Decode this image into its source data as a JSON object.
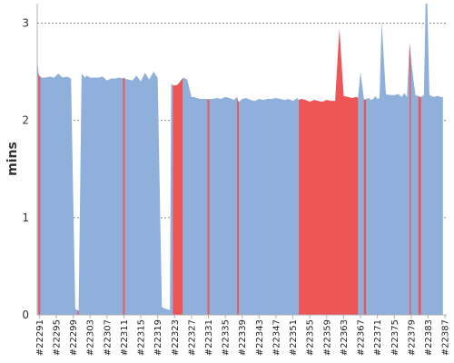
{
  "chart_data": {
    "type": "area",
    "ylabel": "mins",
    "ylim": [
      0,
      3.2
    ],
    "yticks": [
      0,
      1,
      2,
      3
    ],
    "grid": "horizontal dashed",
    "colors": {
      "pass": "#8eb0db",
      "fail": "#f05555"
    },
    "xtick_labels": [
      "#22291",
      "#22295",
      "#22299",
      "#22303",
      "#22307",
      "#22311",
      "#22315",
      "#22319",
      "#22323",
      "#22327",
      "#22331",
      "#22335",
      "#22339",
      "#22343",
      "#22347",
      "#22351",
      "#22355",
      "#22359",
      "#22363",
      "#22367",
      "#22371",
      "#22375",
      "#22379",
      "#22383",
      "#22387"
    ],
    "x": [
      22290.5,
      22290.8,
      22291,
      22291.2,
      22291.6,
      22292.5,
      22293.5,
      22294.5,
      22295.5,
      22296.5,
      22297.5,
      22298.5,
      22299.5,
      22300,
      22300.3,
      22301,
      22301.8,
      22302.2,
      22303,
      22304,
      22305,
      22306,
      22307,
      22308,
      22309,
      22310,
      22310.8,
      22311,
      22311.2,
      22312,
      22313,
      22314,
      22315,
      22316,
      22317,
      22318,
      22319,
      22320,
      22321,
      22321.9,
      22322.2,
      22322.6,
      22323.5,
      22324,
      22325,
      22326,
      22327,
      22327.6,
      22328.3,
      22329,
      22330,
      22330.8,
      22331,
      22331.2,
      22332,
      22333,
      22334,
      22335,
      22336,
      22337,
      22337.8,
      22338,
      22338.2,
      22339,
      22340,
      22341,
      22342,
      22343,
      22344,
      22345,
      22346,
      22347,
      22348,
      22349,
      22350,
      22351,
      22352,
      22352.4,
      22353,
      22354,
      22355,
      22356,
      22357,
      22358,
      22359,
      22360,
      22361,
      22362,
      22363,
      22364,
      22365,
      22366,
      22366.4,
      22367,
      22367.8,
      22368,
      22368.3,
      22369,
      22369.5,
      22370,
      22370.5,
      22371,
      22371.5,
      22372,
      22373,
      22374,
      22375,
      22376,
      22376.7,
      22377.4,
      22378,
      22378.6,
      22379,
      22380,
      22380.7,
      22381,
      22381.3,
      22382,
      22382.4,
      22382.8,
      22383.3,
      22384.3,
      22385,
      22385.5,
      22386,
      22386.5
    ],
    "y": [
      2.65,
      2.48,
      2.46,
      2.45,
      2.44,
      2.44,
      2.45,
      2.44,
      2.48,
      2.44,
      2.45,
      2.43,
      0.06,
      0.05,
      0.04,
      2.48,
      2.44,
      2.46,
      2.44,
      2.44,
      2.44,
      2.45,
      2.41,
      2.43,
      2.43,
      2.44,
      2.43,
      2.44,
      2.43,
      2.42,
      2.41,
      2.46,
      2.4,
      2.49,
      2.42,
      2.5,
      2.44,
      0.08,
      0.06,
      0.05,
      2.38,
      2.36,
      2.36,
      2.38,
      2.44,
      2.42,
      2.24,
      2.24,
      2.23,
      2.22,
      2.22,
      2.22,
      2.21,
      2.22,
      2.22,
      2.23,
      2.22,
      2.24,
      2.23,
      2.21,
      2.24,
      2.2,
      2.19,
      2.22,
      2.23,
      2.21,
      2.2,
      2.22,
      2.21,
      2.22,
      2.22,
      2.23,
      2.22,
      2.21,
      2.22,
      2.2,
      2.23,
      2.21,
      2.22,
      2.21,
      2.19,
      2.21,
      2.2,
      2.19,
      2.21,
      2.2,
      2.2,
      2.94,
      2.25,
      2.24,
      2.23,
      2.24,
      2.23,
      2.5,
      2.22,
      2.21,
      2.22,
      2.23,
      2.21,
      2.22,
      2.25,
      2.22,
      2.23,
      3.02,
      2.27,
      2.26,
      2.26,
      2.27,
      2.24,
      2.28,
      2.24,
      2.8,
      2.6,
      2.26,
      2.25,
      2.24,
      2.24,
      2.26,
      3.2,
      3.2,
      2.26,
      2.24,
      2.25,
      2.25,
      2.24,
      2.24
    ],
    "fail_ranges": [
      [
        22290.8,
        22291.2
      ],
      [
        22300,
        22300.3
      ],
      [
        22310.8,
        22311.2
      ],
      [
        22322.6,
        22324.9
      ],
      [
        22330.8,
        22331.2
      ],
      [
        22337.8,
        22338.2
      ],
      [
        22352.4,
        22366.4
      ],
      [
        22367.8,
        22368.3
      ],
      [
        22378.6,
        22378.9
      ],
      [
        22380.7,
        22381.3
      ]
    ]
  }
}
